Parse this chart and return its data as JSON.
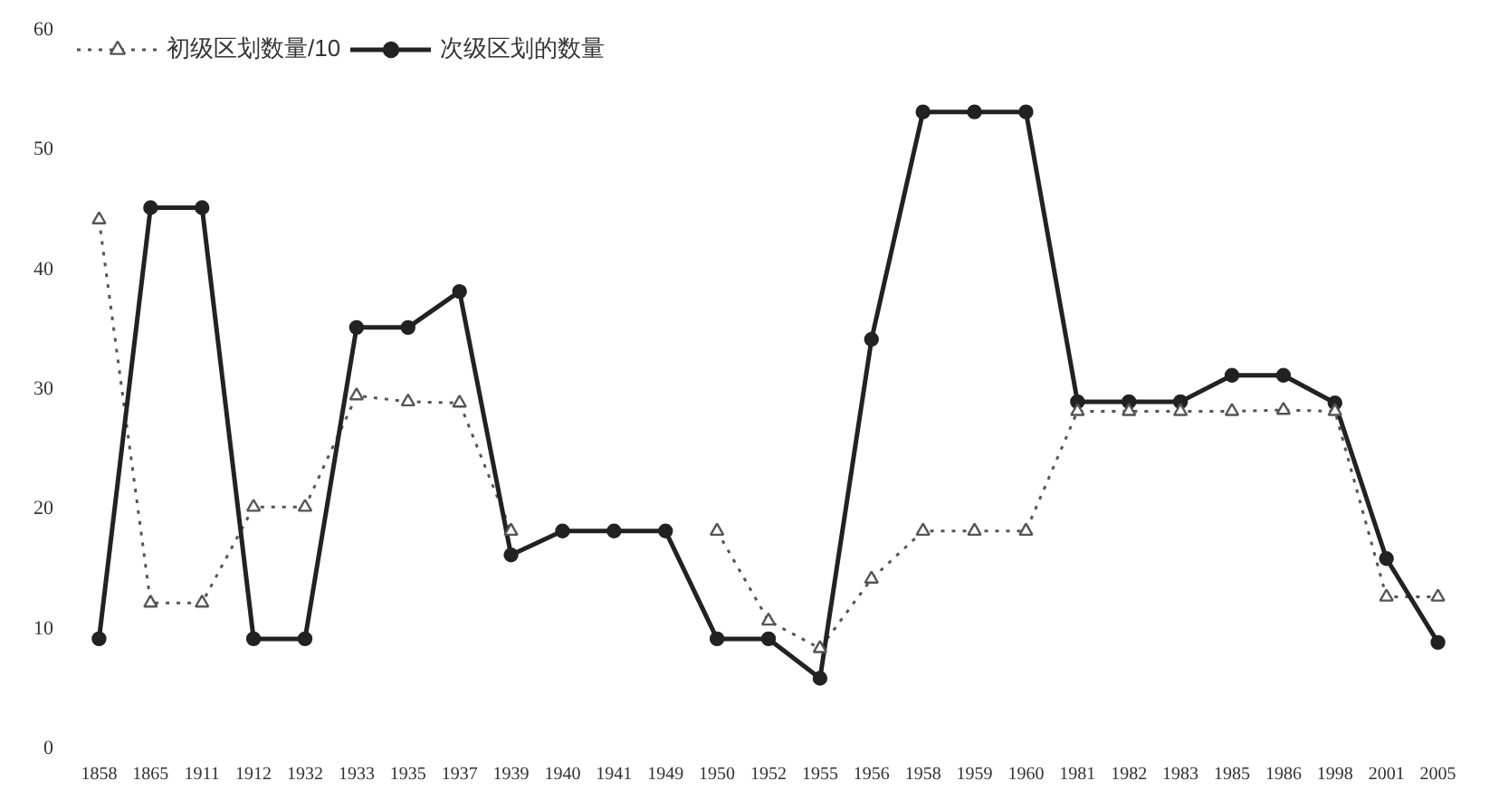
{
  "chart_data": {
    "type": "line",
    "categories": [
      "1858",
      "1865",
      "1911",
      "1912",
      "1932",
      "1933",
      "1935",
      "1937",
      "1939",
      "1940",
      "1941",
      "1949",
      "1950",
      "1952",
      "1955",
      "1956",
      "1958",
      "1959",
      "1960",
      "1981",
      "1982",
      "1983",
      "1985",
      "1986",
      "1998",
      "2001",
      "2005"
    ],
    "series": [
      {
        "name": "初级区划数量/10",
        "color": "#555555",
        "marker": "triangle",
        "line_style": "dotted",
        "values": [
          44,
          12,
          12,
          20,
          20,
          29.3,
          28.8,
          28.7,
          18,
          null,
          null,
          null,
          18,
          10.5,
          8.2,
          14,
          18,
          18,
          18,
          28,
          28,
          28,
          28,
          28.1,
          28,
          12.5,
          12.5
        ]
      },
      {
        "name": "次级区划的数量",
        "color": "#222222",
        "marker": "circle",
        "line_style": "solid",
        "values": [
          9,
          45,
          45,
          9,
          9,
          35,
          35,
          38,
          16,
          18,
          18,
          18,
          9,
          9,
          5.7,
          34,
          53,
          53,
          53,
          28.8,
          28.8,
          28.8,
          31,
          31,
          28.7,
          15.7,
          8.7
        ]
      }
    ],
    "ylim": [
      0,
      60
    ],
    "yticks": [
      0,
      10,
      20,
      30,
      40,
      50,
      60
    ],
    "grid": false,
    "legend": "top left"
  }
}
